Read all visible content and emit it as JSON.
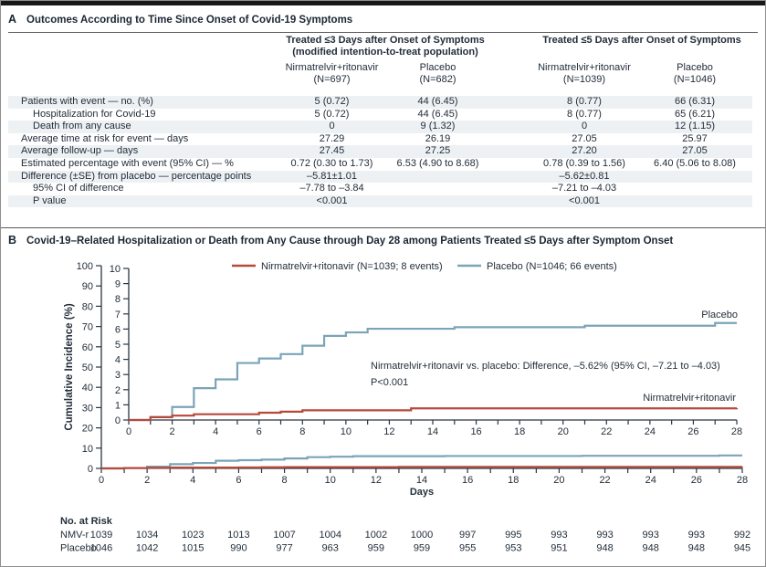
{
  "panel_a": {
    "label": "A",
    "title": "Outcomes According to Time Since Onset of Covid-19 Symptoms",
    "group1_title": "Treated ≤3 Days after Onset of Symptoms",
    "group1_subtitle": "(modified intention-to-treat population)",
    "group2_title": "Treated ≤5 Days after Onset of Symptoms",
    "col_headers": [
      {
        "drug": "Nirmatrelvir+ritonavir",
        "n": "(N=697)"
      },
      {
        "drug": "Placebo",
        "n": "(N=682)"
      },
      {
        "drug": "Nirmatrelvir+ritonavir",
        "n": "(N=1039)"
      },
      {
        "drug": "Placebo",
        "n": "(N=1046)"
      }
    ],
    "rows": [
      {
        "label": "Patients with event — no. (%)",
        "values": [
          "5 (0.72)",
          "44 (6.45)",
          "8 (0.77)",
          "66 (6.31)"
        ]
      },
      {
        "label": "Hospitalization for Covid-19",
        "values": [
          "5 (0.72)",
          "44 (6.45)",
          "8 (0.77)",
          "65 (6.21)"
        ]
      },
      {
        "label": "Death from any cause",
        "values": [
          "0",
          "9 (1.32)",
          "0",
          "12 (1.15)"
        ]
      },
      {
        "label": "Average time at risk for event — days",
        "values": [
          "27.29",
          "26.19",
          "27.05",
          "25.97"
        ]
      },
      {
        "label": "Average follow-up — days",
        "values": [
          "27.45",
          "27.25",
          "27.20",
          "27.05"
        ]
      },
      {
        "label": "Estimated percentage with event (95% CI) — %",
        "values": [
          "0.72 (0.30 to 1.73)",
          "6.53 (4.90 to 8.68)",
          "0.78 (0.39 to 1.56)",
          "6.40 (5.06 to 8.08)"
        ]
      },
      {
        "label": "Difference (±SE) from placebo — percentage points",
        "values": [
          "–5.81±1.01",
          "",
          "–5.62±0.81",
          ""
        ]
      },
      {
        "label": "95% CI of difference",
        "values": [
          "–7.78 to –3.84",
          "",
          "–7.21 to –4.03",
          ""
        ]
      },
      {
        "label": "P value",
        "values": [
          "<0.001",
          "",
          "<0.001",
          ""
        ]
      }
    ]
  },
  "panel_b": {
    "label": "B"
  },
  "chart_data": {
    "type": "line",
    "step": true,
    "title": "Covid-19–Related Hospitalization or Death from Any Cause through Day 28 among Patients Treated ≤5 Days after Symptom Onset",
    "xlabel": "Days",
    "ylabel": "Cumulative Incidence (%)",
    "xlim": [
      0,
      28
    ],
    "x_tick_step_minor": 1,
    "x_tick_step_labeled": 2,
    "main_ylim": [
      0,
      100
    ],
    "main_ytick_step": 10,
    "inset_ylim": [
      0,
      10
    ],
    "inset_ytick_step": 1,
    "grid": false,
    "legend_position": "top-inside",
    "axis_color": "#2b3542",
    "series": [
      {
        "name": "Placebo",
        "legend": "Placebo (N=1046; 66 events)",
        "end_label": "Placebo",
        "color": "#7ba4b8",
        "points": [
          [
            0,
            0
          ],
          [
            1,
            0.19
          ],
          [
            2,
            0.86
          ],
          [
            3,
            2.1
          ],
          [
            4,
            2.68
          ],
          [
            5,
            3.76
          ],
          [
            6,
            4.06
          ],
          [
            7,
            4.35
          ],
          [
            8,
            4.9
          ],
          [
            9,
            5.55
          ],
          [
            10,
            5.78
          ],
          [
            11,
            6.02
          ],
          [
            15,
            6.12
          ],
          [
            21,
            6.22
          ],
          [
            27,
            6.4
          ],
          [
            28,
            6.4
          ]
        ]
      },
      {
        "name": "Nirmatrelvir+ritonavir",
        "legend": "Nirmatrelvir+ritonavir (N=1039; 8 events)",
        "end_label": "Nirmatrelvir+ritonavir",
        "color": "#b54a3b",
        "points": [
          [
            0,
            0
          ],
          [
            1,
            0.19
          ],
          [
            2,
            0.29
          ],
          [
            3,
            0.38
          ],
          [
            6,
            0.48
          ],
          [
            7,
            0.55
          ],
          [
            8,
            0.64
          ],
          [
            13,
            0.77
          ],
          [
            28,
            0.78
          ]
        ]
      }
    ],
    "annotations": [
      "Nirmatrelvir+ritonavir vs. placebo: Difference, –5.62% (95% CI, –7.21 to –4.03)",
      "P<0.001"
    ],
    "risk_table": {
      "title": "No. at Risk",
      "days": [
        0,
        2,
        4,
        6,
        8,
        10,
        12,
        14,
        16,
        18,
        20,
        22,
        24,
        26,
        28
      ],
      "rows": [
        {
          "label": "NMV-r",
          "values": [
            "1039",
            "1034",
            "1023",
            "1013",
            "1007",
            "1004",
            "1002",
            "1000",
            "997",
            "995",
            "993",
            "993",
            "993",
            "993",
            "992"
          ]
        },
        {
          "label": "Placebo",
          "values": [
            "1046",
            "1042",
            "1015",
            "990",
            "977",
            "963",
            "959",
            "959",
            "955",
            "953",
            "951",
            "948",
            "948",
            "948",
            "945"
          ]
        }
      ]
    }
  }
}
